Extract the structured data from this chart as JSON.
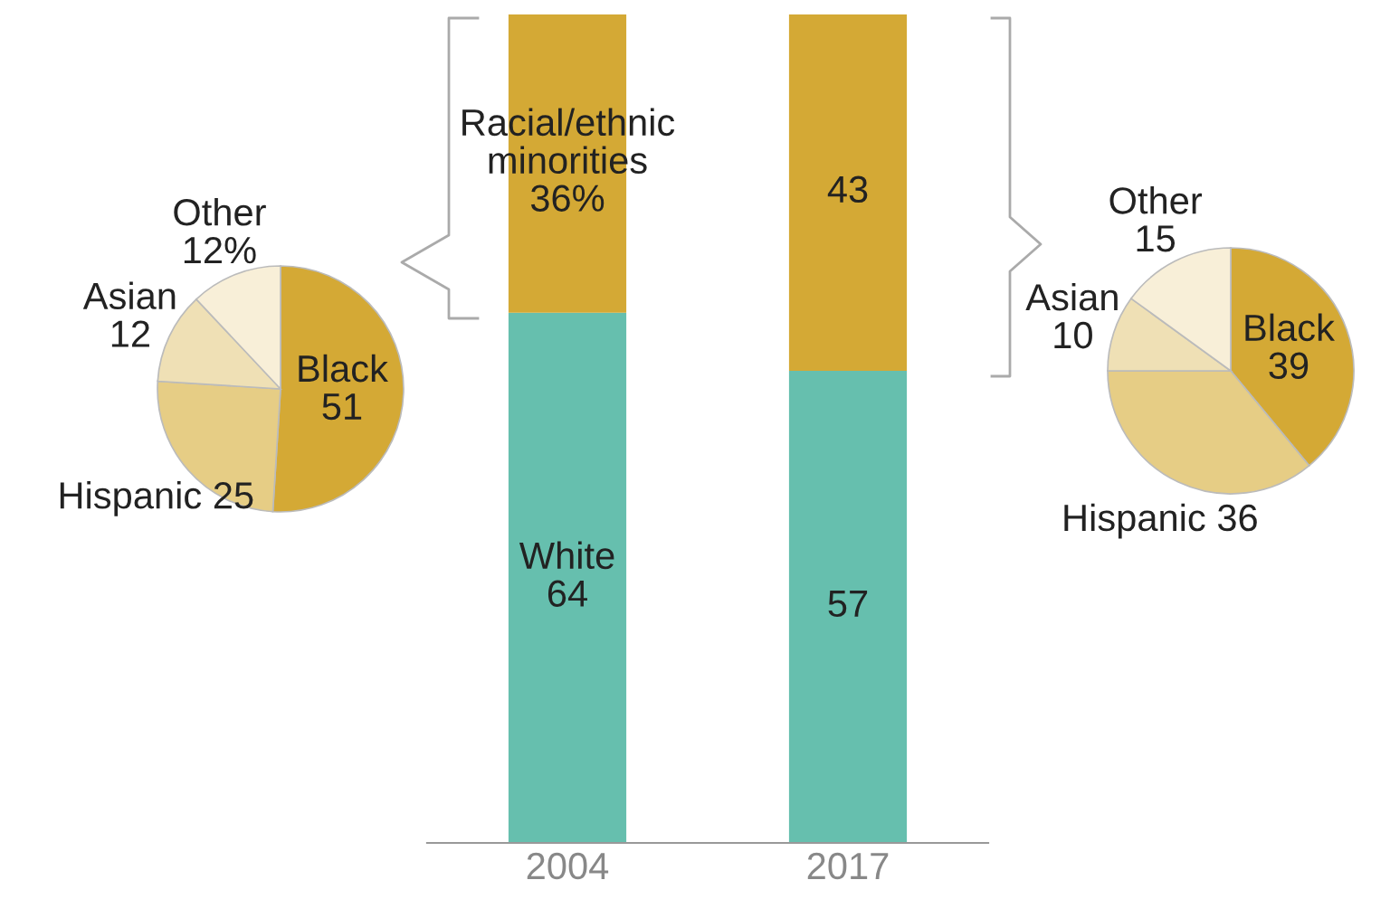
{
  "chart_data": [
    {
      "type": "pie",
      "categories": [
        "Black",
        "Hispanic",
        "Asian",
        "Other"
      ],
      "values": [
        51,
        25,
        12,
        12
      ],
      "value_labels": [
        "51",
        "25",
        "12",
        "12%"
      ],
      "colors": [
        "#d4a935",
        "#e6cd85",
        "#efe0b5",
        "#f8efd8"
      ]
    },
    {
      "type": "bar",
      "stacked": true,
      "categories": [
        "2004",
        "2017"
      ],
      "series": [
        {
          "name": "White",
          "color": "#66bfae",
          "values": [
            64,
            57
          ],
          "value_labels": [
            "64",
            "57"
          ]
        },
        {
          "name": "Racial/ethnic minorities",
          "color": "#d4a935",
          "values": [
            36,
            43
          ],
          "value_labels": [
            "36%",
            "43"
          ]
        }
      ]
    },
    {
      "type": "pie",
      "categories": [
        "Black",
        "Hispanic",
        "Asian",
        "Other"
      ],
      "values": [
        39,
        36,
        10,
        15
      ],
      "value_labels": [
        "39",
        "36",
        "10",
        "15"
      ],
      "colors": [
        "#d4a935",
        "#e6cd85",
        "#efe0b5",
        "#f8efd8"
      ]
    }
  ]
}
